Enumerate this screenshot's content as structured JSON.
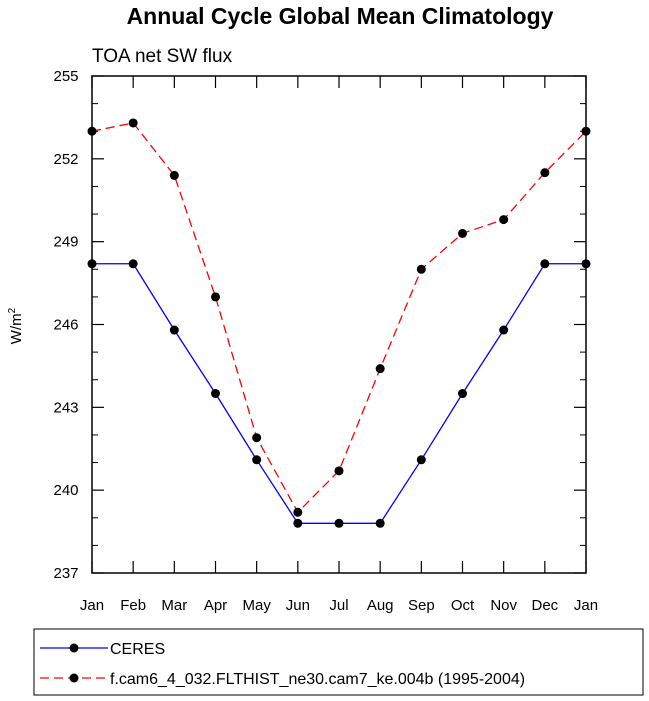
{
  "chart_data": {
    "type": "line",
    "title": "Annual Cycle Global Mean Climatology",
    "subtitle": "TOA net SW flux",
    "ylabel": "W/m",
    "ylabel_sup": "2",
    "xlabel": "",
    "ylim": [
      237,
      255
    ],
    "yticks": [
      237,
      240,
      243,
      246,
      249,
      252,
      255
    ],
    "categories": [
      "Jan",
      "Feb",
      "Mar",
      "Apr",
      "May",
      "Jun",
      "Jul",
      "Aug",
      "Sep",
      "Oct",
      "Nov",
      "Dec",
      "Jan"
    ],
    "series": [
      {
        "name": "CERES",
        "color": "#0000ff",
        "dash": "solid",
        "values": [
          248.2,
          248.2,
          245.8,
          243.5,
          241.1,
          238.8,
          238.8,
          238.8,
          241.1,
          243.5,
          245.8,
          248.2,
          248.2
        ]
      },
      {
        "name": "f.cam6_4_032.FLTHIST_ne30.cam7_ke.004b (1995-2004)",
        "color": "#ff0000",
        "dash": "dashed",
        "values": [
          253.0,
          253.3,
          251.4,
          247.0,
          241.9,
          239.2,
          240.7,
          244.4,
          248.0,
          249.3,
          249.8,
          251.5,
          253.0
        ]
      }
    ]
  }
}
